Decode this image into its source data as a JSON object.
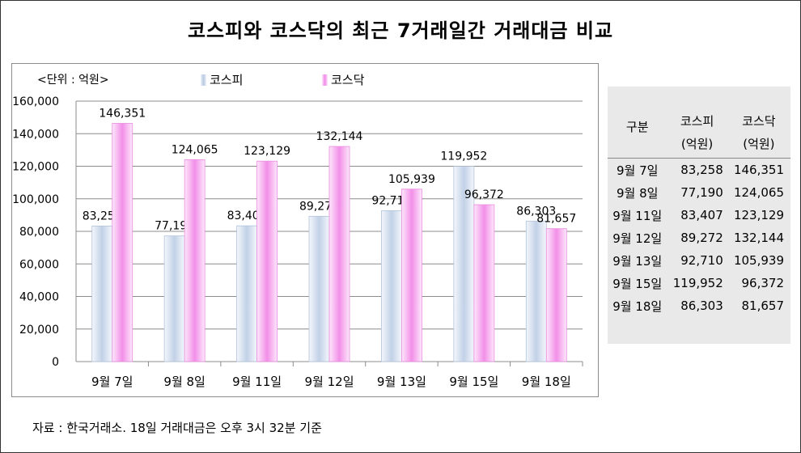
{
  "title": "코스피와 코스닥의 최근 7거래일간 거래대금 비교",
  "unit_label": "<단위 : 억원>",
  "source": "자료 : 한국거래소. 18일 거래대금은 오후 3시 32분 기준",
  "colors": {
    "kospi": "#c7d5ea",
    "kosdaq": "#f3a6ec"
  },
  "chart_data": {
    "type": "bar",
    "categories": [
      "9월 7일",
      "9월 8일",
      "9월 11일",
      "9월 12일",
      "9월 13일",
      "9월 15일",
      "9월 18일"
    ],
    "series": [
      {
        "name": "코스피",
        "values": [
          83258,
          77190,
          83407,
          89272,
          92710,
          119952,
          86303
        ]
      },
      {
        "name": "코스닥",
        "values": [
          146351,
          124065,
          123129,
          132144,
          105939,
          96372,
          81657
        ]
      }
    ],
    "ylim": [
      0,
      160000
    ],
    "yticks": [
      0,
      20000,
      40000,
      60000,
      80000,
      100000,
      120000,
      140000,
      160000
    ],
    "grid": true,
    "legend": "top",
    "title": "",
    "xlabel": "",
    "ylabel": ""
  },
  "table": {
    "headers": [
      "구분",
      "코스피",
      "코스닥"
    ],
    "subheaders": [
      "(억원)",
      "(억원)"
    ],
    "rows": [
      [
        "9월 7일",
        "83,258",
        "146,351"
      ],
      [
        "9월 8일",
        "77,190",
        "124,065"
      ],
      [
        "9월 11일",
        "83,407",
        "123,129"
      ],
      [
        "9월 12일",
        "89,272",
        "132,144"
      ],
      [
        "9월 13일",
        "92,710",
        "105,939"
      ],
      [
        "9월 15일",
        "119,952",
        "96,372"
      ],
      [
        "9월 18일",
        "86,303",
        "81,657"
      ]
    ]
  }
}
